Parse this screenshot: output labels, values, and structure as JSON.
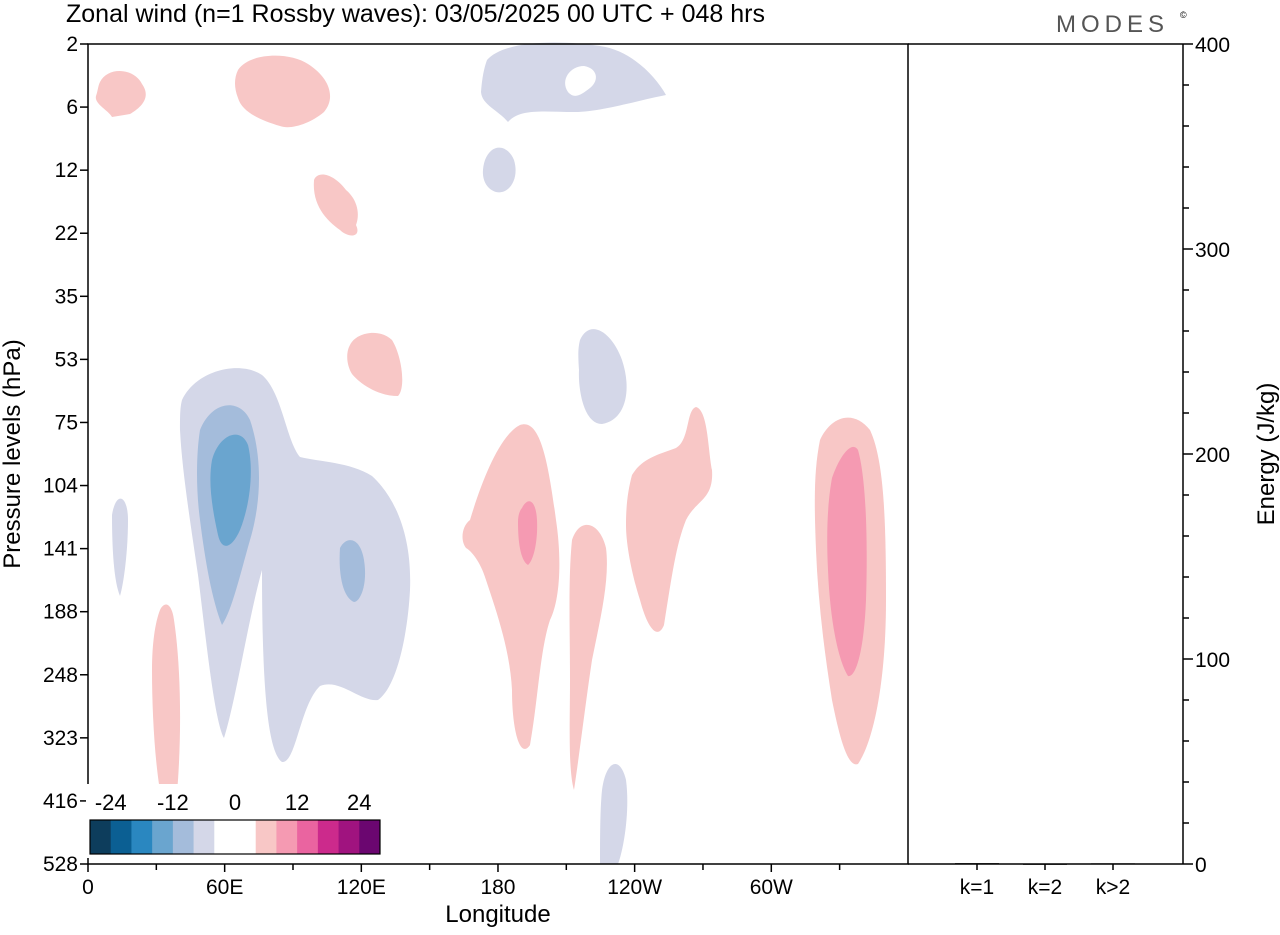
{
  "header": {
    "title": "Zonal wind (n=1 Rossby waves):  03/05/2025  00 UTC  + 048 hrs",
    "logo": "MODES",
    "logo_mark": "©"
  },
  "chart_data": [
    {
      "type": "heatmap",
      "title": "Zonal wind (n=1 Rossby waves):  03/05/2025  00 UTC  + 048 hrs",
      "xlabel": "Longitude",
      "ylabel": "Pressure levels (hPa)",
      "x_ticks": [
        "0",
        "60E",
        "120E",
        "180",
        "120W",
        "60W"
      ],
      "y_ticks": [
        "2",
        "6",
        "12",
        "22",
        "35",
        "53",
        "75",
        "104",
        "141",
        "188",
        "248",
        "323",
        "416",
        "528"
      ],
      "colorbar": {
        "tick_labels": [
          "-24",
          "-12",
          "0",
          "12",
          "24"
        ],
        "colors": [
          "#0d3d5c",
          "#0b5f93",
          "#2a87c0",
          "#6aa5cf",
          "#a4bcdb",
          "#d4d7e8",
          "#ffffff",
          "#ffffff",
          "#f8c7c6",
          "#f59ab2",
          "#ea64a0",
          "#cc2a8c",
          "#a0137f",
          "#6b0670"
        ]
      },
      "contours": [
        {
          "level": "negative-weak",
          "color": "#d4d7e8"
        },
        {
          "level": "negative-mid",
          "color": "#a4bcdb"
        },
        {
          "level": "negative-strong",
          "color": "#6aa5cf"
        },
        {
          "level": "positive-weak",
          "color": "#f8c7c6"
        },
        {
          "level": "positive-mid",
          "color": "#f59ab2"
        }
      ]
    },
    {
      "type": "bar",
      "categories": [
        "k=1",
        "k=2",
        "k>2"
      ],
      "values": [
        0.4,
        0.1,
        0.3
      ],
      "ylabel": "Energy (J/kg)",
      "ylim": [
        0,
        400
      ],
      "y_ticks": [
        "0",
        "100",
        "200",
        "300",
        "400"
      ]
    }
  ]
}
